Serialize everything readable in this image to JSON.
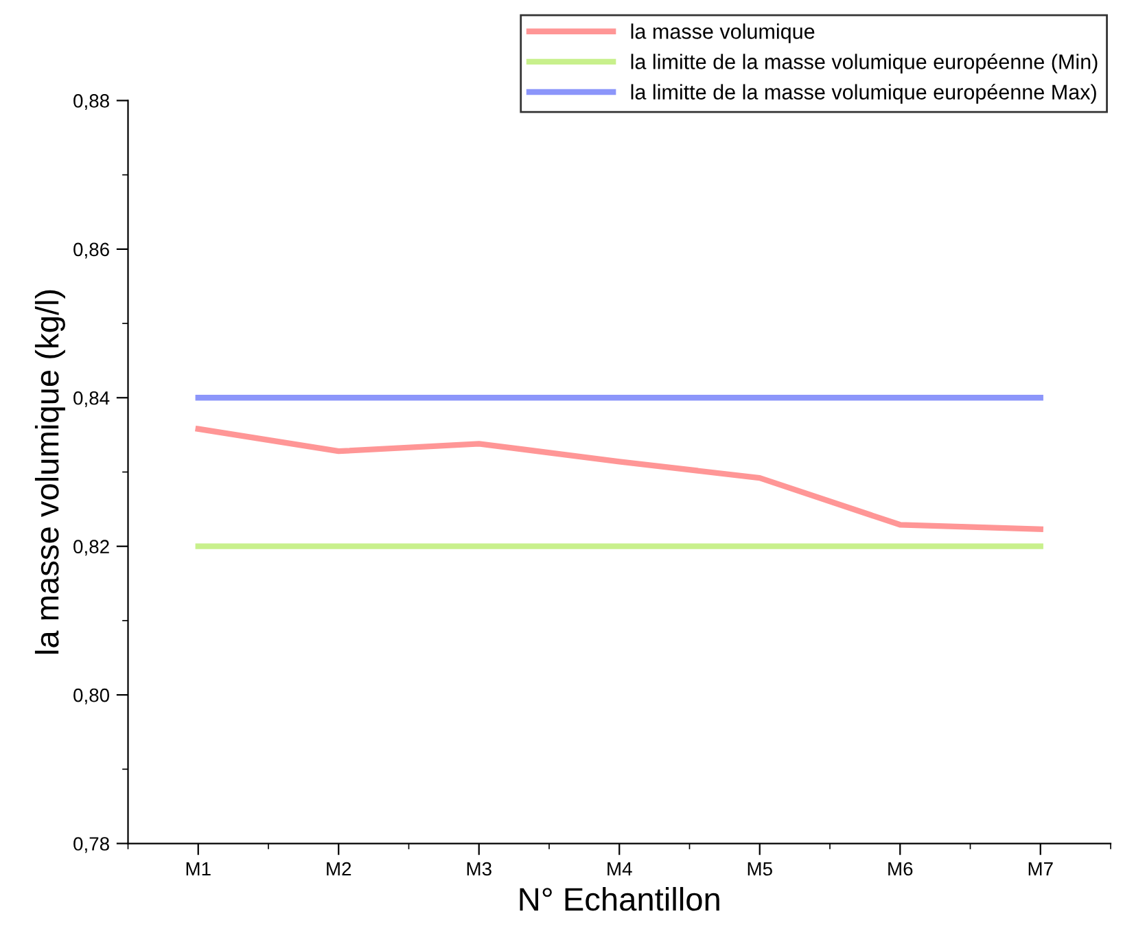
{
  "chart_data": {
    "type": "line",
    "xlabel": "N° Echantillon",
    "ylabel": "la masse volumique (kg/l)",
    "categories": [
      "M1",
      "M2",
      "M3",
      "M4",
      "M5",
      "M6",
      "M7"
    ],
    "series": [
      {
        "name": "la masse volumique",
        "color": "#ff9696",
        "values": [
          0.8358,
          0.8328,
          0.8338,
          0.8314,
          0.8292,
          0.8229,
          0.8223
        ]
      },
      {
        "name": "la limitte de la masse volumique européenne (Min)",
        "color": "#c8f08c",
        "values": [
          0.82,
          0.82,
          0.82,
          0.82,
          0.82,
          0.82,
          0.82
        ]
      },
      {
        "name": "la limitte de la masse volumique européenne Max)",
        "color": "#8c96fa",
        "values": [
          0.84,
          0.84,
          0.84,
          0.84,
          0.84,
          0.84,
          0.84
        ]
      }
    ],
    "ylim": [
      0.78,
      0.88
    ],
    "yticks": [
      {
        "value": 0.78,
        "label": "0,78"
      },
      {
        "value": 0.8,
        "label": "0,80"
      },
      {
        "value": 0.82,
        "label": "0,82"
      },
      {
        "value": 0.84,
        "label": "0,84"
      },
      {
        "value": 0.86,
        "label": "0,86"
      },
      {
        "value": 0.88,
        "label": "0,88"
      }
    ],
    "grid": false,
    "legend": "top right",
    "marker": "none",
    "line_style": "solid"
  }
}
